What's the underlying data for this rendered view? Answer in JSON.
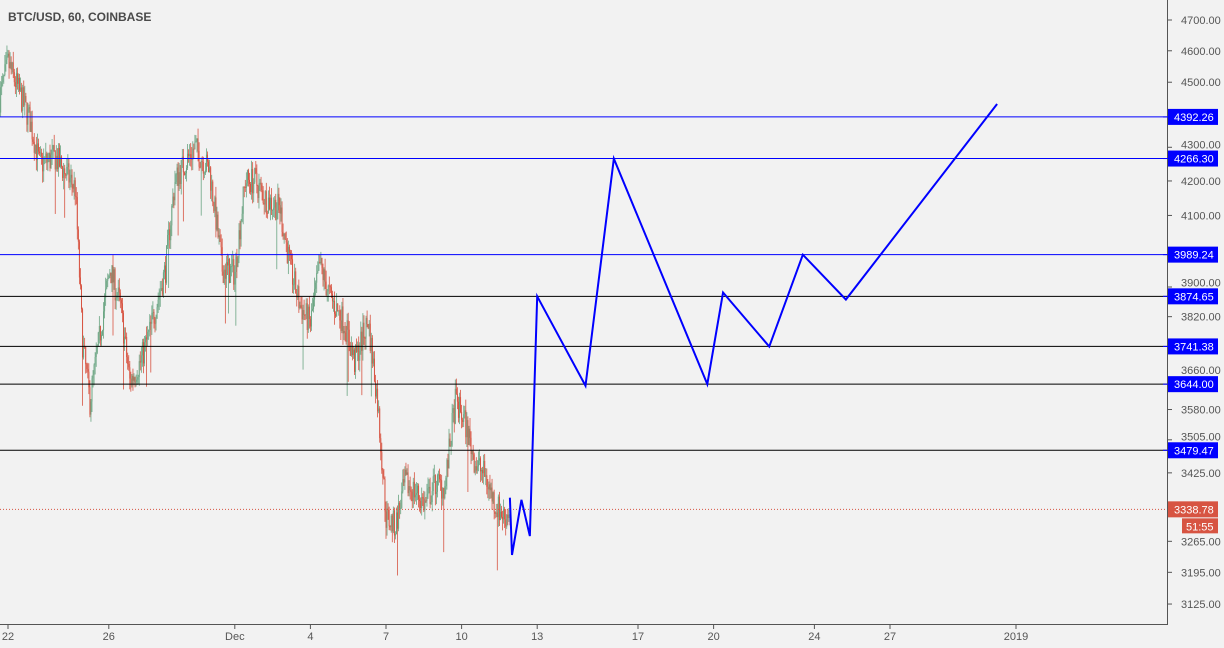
{
  "header": {
    "title": "BTC/USD, 60, COINBASE"
  },
  "chart_data": {
    "type": "candlestick",
    "title": "BTC/USD, 60, COINBASE",
    "symbol": "BTC/USD",
    "interval": "60",
    "exchange": "COINBASE",
    "y_scale": "log",
    "ylim": [
      3060,
      4760
    ],
    "xlim": [
      "2018-11-21T16:00",
      "2019-01-06T00:00"
    ],
    "grid": false,
    "colors": {
      "up": "#6ba583",
      "down": "#d75442",
      "level_blue": "#0000ff",
      "level_black": "#000000",
      "projection": "#0000ff",
      "last_price": "#d75442"
    },
    "y_ticks": [
      "4700.00",
      "4600.00",
      "4500.00",
      "4300.00",
      "4200.00",
      "4100.00",
      "3900.00",
      "3820.00",
      "3660.00",
      "3580.00",
      "3505.00",
      "3425.00",
      "3265.00",
      "3195.00",
      "3125.00"
    ],
    "x_ticks": [
      {
        "label": "22",
        "date": "2018-11-22"
      },
      {
        "label": "26",
        "date": "2018-11-26"
      },
      {
        "label": "Dec",
        "date": "2018-12-01"
      },
      {
        "label": "4",
        "date": "2018-12-04"
      },
      {
        "label": "7",
        "date": "2018-12-07"
      },
      {
        "label": "10",
        "date": "2018-12-10"
      },
      {
        "label": "13",
        "date": "2018-12-13"
      },
      {
        "label": "17",
        "date": "2018-12-17"
      },
      {
        "label": "20",
        "date": "2018-12-20"
      },
      {
        "label": "24",
        "date": "2018-12-24"
      },
      {
        "label": "27",
        "date": "2018-12-27"
      },
      {
        "label": "2019",
        "date": "2019-01-01"
      }
    ],
    "price_path_approx": [
      [
        "2018-11-21T16:00",
        4450
      ],
      [
        "2018-11-22T00:00",
        4560
      ],
      [
        "2018-11-22T07:00",
        4500
      ],
      [
        "2018-11-22T21:00",
        4380
      ],
      [
        "2018-11-23T06:00",
        4250
      ],
      [
        "2018-11-23T21:00",
        4270
      ],
      [
        "2018-11-24T16:00",
        4180
      ],
      [
        "2018-11-24T23:00",
        3750
      ],
      [
        "2018-11-25T06:00",
        3600
      ],
      [
        "2018-11-25T16:00",
        3780
      ],
      [
        "2018-11-26T01:00",
        3950
      ],
      [
        "2018-11-26T11:00",
        3850
      ],
      [
        "2018-11-26T20:00",
        3650
      ],
      [
        "2018-11-27T06:00",
        3700
      ],
      [
        "2018-11-27T15:00",
        3780
      ],
      [
        "2018-11-28T06:00",
        3950
      ],
      [
        "2018-11-28T15:00",
        4200
      ],
      [
        "2018-11-29T00:00",
        4250
      ],
      [
        "2018-11-29T10:00",
        4300
      ],
      [
        "2018-11-30T00:00",
        4230
      ],
      [
        "2018-11-30T12:00",
        3950
      ],
      [
        "2018-12-01T00:00",
        3940
      ],
      [
        "2018-12-01T10:00",
        4200
      ],
      [
        "2018-12-01T19:00",
        4200
      ],
      [
        "2018-12-02T05:00",
        4150
      ],
      [
        "2018-12-02T19:00",
        4120
      ],
      [
        "2018-12-03T05:00",
        3950
      ],
      [
        "2018-12-03T14:00",
        3850
      ],
      [
        "2018-12-04T00:00",
        3800
      ],
      [
        "2018-12-04T09:00",
        3960
      ],
      [
        "2018-12-04T19:00",
        3870
      ],
      [
        "2018-12-05T09:00",
        3800
      ],
      [
        "2018-12-05T18:00",
        3700
      ],
      [
        "2018-12-06T07:00",
        3810
      ],
      [
        "2018-12-06T16:00",
        3600
      ],
      [
        "2018-12-07T00:00",
        3320
      ],
      [
        "2018-12-07T09:00",
        3300
      ],
      [
        "2018-12-07T18:00",
        3400
      ],
      [
        "2018-12-08T04:00",
        3380
      ],
      [
        "2018-12-08T13:00",
        3350
      ],
      [
        "2018-12-08T23:00",
        3400
      ],
      [
        "2018-12-09T08:00",
        3390
      ],
      [
        "2018-12-09T18:00",
        3600
      ],
      [
        "2018-12-10T03:00",
        3550
      ],
      [
        "2018-12-10T13:00",
        3450
      ],
      [
        "2018-12-10T22:00",
        3420
      ],
      [
        "2018-12-11T08:00",
        3350
      ],
      [
        "2018-12-11T17:00",
        3320
      ],
      [
        "2018-12-11T22:00",
        3338.78
      ]
    ],
    "levels": [
      {
        "price": 4392.26,
        "label": "4392.26",
        "color": "#0000ff"
      },
      {
        "price": 4266.3,
        "label": "4266.30",
        "color": "#0000ff"
      },
      {
        "price": 3989.24,
        "label": "3989.24",
        "color": "#0000ff"
      },
      {
        "price": 3874.65,
        "label": "3874.65",
        "color": "#000000"
      },
      {
        "price": 3741.38,
        "label": "3741.38",
        "color": "#000000"
      },
      {
        "price": 3644.0,
        "label": "3644.00",
        "color": "#000000"
      },
      {
        "price": 3479.47,
        "label": "3479.47",
        "color": "#000000"
      }
    ],
    "last_price": {
      "value": 3338.78,
      "label": "3338.78",
      "countdown": "51:55"
    },
    "projection": [
      [
        "2018-12-11T22:00",
        3366
      ],
      [
        "2018-12-12T00:00",
        3234
      ],
      [
        "2018-12-12T09:00",
        3361
      ],
      [
        "2018-12-12T17:00",
        3277
      ],
      [
        "2018-12-13T00:00",
        3874.65
      ],
      [
        "2018-12-14T22:00",
        3640
      ],
      [
        "2018-12-16T01:00",
        4266
      ],
      [
        "2018-12-19T18:00",
        3644
      ],
      [
        "2018-12-20T09:00",
        3885
      ],
      [
        "2018-12-22T05:00",
        3741
      ],
      [
        "2018-12-23T13:00",
        3989
      ],
      [
        "2018-12-25T06:00",
        3866
      ],
      [
        "2018-12-31T06:00",
        4432
      ]
    ]
  }
}
